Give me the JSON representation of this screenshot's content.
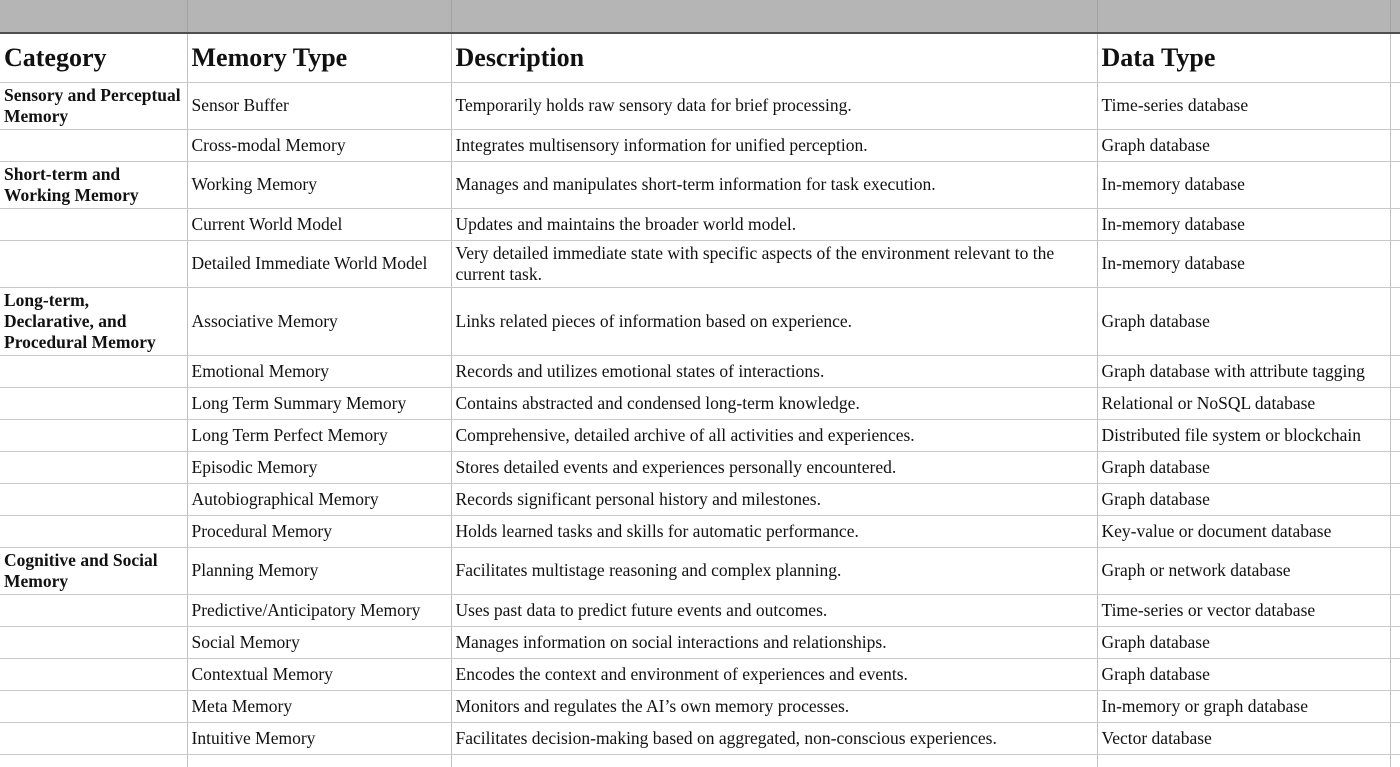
{
  "colors": {
    "header_bar_bg": "#b5b5b5",
    "header_bar_divider": "#a2a2a2",
    "header_bar_bottom": "#4f4f4f",
    "grid_h": "#c9c9c9",
    "grid_v": "#c0c0c0",
    "text": "#111111",
    "cell_bg": "#ffffff"
  },
  "table": {
    "columns": [
      "Category",
      "Memory Type",
      "Description",
      "Data Type"
    ],
    "rows": [
      {
        "category": "Sensory and Perceptual Memory",
        "memory_type": "Sensor Buffer",
        "description": "Temporarily holds raw sensory data for brief processing.",
        "data_type": "Time-series database"
      },
      {
        "category": "",
        "memory_type": "Cross-modal Memory",
        "description": "Integrates multisensory information for unified perception.",
        "data_type": "Graph database"
      },
      {
        "category": "Short-term and Working Memory",
        "memory_type": "Working Memory",
        "description": "Manages and manipulates short-term information for task execution.",
        "data_type": "In-memory database"
      },
      {
        "category": "",
        "memory_type": "Current World Model",
        "description": "Updates and maintains the broader world model.",
        "data_type": "In-memory database"
      },
      {
        "category": "",
        "memory_type": "Detailed Immediate World Model",
        "description": "Very detailed immediate state with specific aspects of the environment relevant to the current task.",
        "data_type": "In-memory database"
      },
      {
        "category": "Long-term, Declarative, and Procedural Memory",
        "memory_type": "Associative Memory",
        "description": "Links related pieces of information based on experience.",
        "data_type": "Graph database"
      },
      {
        "category": "",
        "memory_type": "Emotional Memory",
        "description": "Records and utilizes emotional states of interactions.",
        "data_type": "Graph database with attribute tagging"
      },
      {
        "category": "",
        "memory_type": "Long Term Summary Memory",
        "description": "Contains abstracted and condensed long-term knowledge.",
        "data_type": "Relational or NoSQL database"
      },
      {
        "category": "",
        "memory_type": "Long Term Perfect Memory",
        "description": "Comprehensive, detailed archive of all activities and experiences.",
        "data_type": "Distributed file system or blockchain"
      },
      {
        "category": "",
        "memory_type": "Episodic Memory",
        "description": "Stores detailed events and experiences personally encountered.",
        "data_type": "Graph database"
      },
      {
        "category": "",
        "memory_type": "Autobiographical Memory",
        "description": "Records significant personal history and milestones.",
        "data_type": "Graph database"
      },
      {
        "category": "",
        "memory_type": "Procedural Memory",
        "description": "Holds learned tasks and skills for automatic performance.",
        "data_type": "Key-value or document database"
      },
      {
        "category": "Cognitive and Social Memory",
        "memory_type": "Planning Memory",
        "description": "Facilitates multistage reasoning and complex planning.",
        "data_type": "Graph or network database"
      },
      {
        "category": "",
        "memory_type": "Predictive/Anticipatory Memory",
        "description": "Uses past data to predict future events and outcomes.",
        "data_type": "Time-series or vector database"
      },
      {
        "category": "",
        "memory_type": "Social Memory",
        "description": "Manages information on social interactions and relationships.",
        "data_type": "Graph database"
      },
      {
        "category": "",
        "memory_type": "Contextual Memory",
        "description": "Encodes the context and environment of experiences and events.",
        "data_type": "Graph database"
      },
      {
        "category": "",
        "memory_type": "Meta Memory",
        "description": "Monitors and regulates the AI’s own memory processes.",
        "data_type": "In-memory or graph database"
      },
      {
        "category": "",
        "memory_type": "Intuitive Memory",
        "description": "Facilitates decision-making based on aggregated, non-conscious experiences.",
        "data_type": "Vector database"
      }
    ]
  }
}
